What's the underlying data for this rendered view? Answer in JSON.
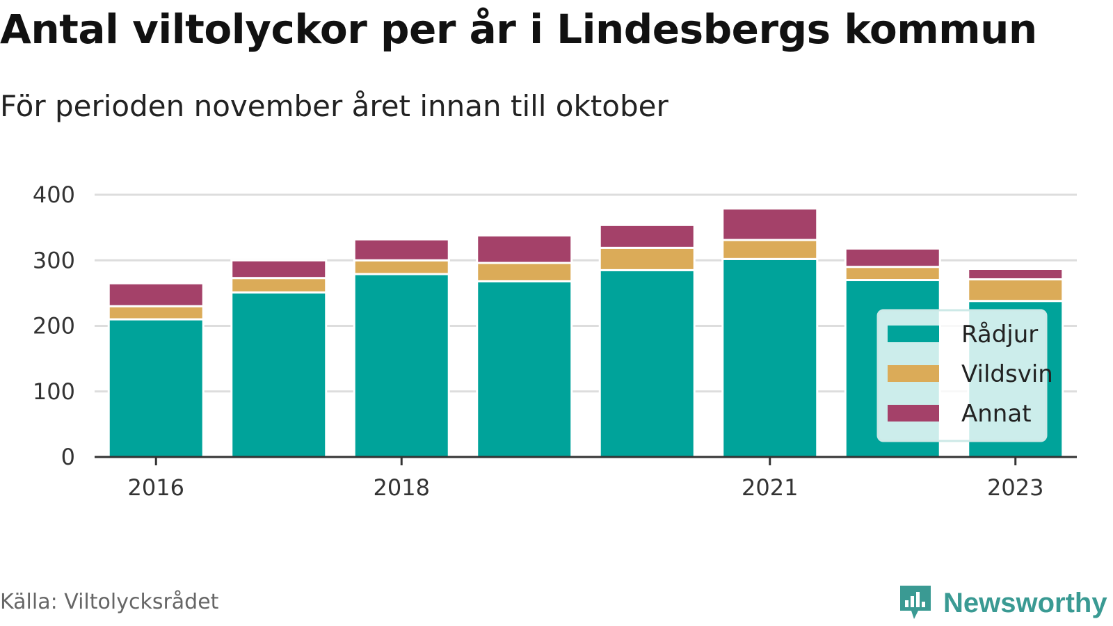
{
  "title": "Antal viltolyckor per år i Lindesbergs kommun",
  "subtitle": "För perioden november året innan till oktober",
  "source": "Källa: Viltolycksrådet",
  "brand": "Newsworthy",
  "chart_data": {
    "type": "bar",
    "stacked": true,
    "categories": [
      "2016",
      "2017",
      "2018",
      "2019",
      "2020",
      "2021",
      "2022",
      "2023"
    ],
    "x_tick_labels": [
      "2016",
      "2018",
      "2021",
      "2023"
    ],
    "ylim": [
      0,
      400
    ],
    "y_ticks": [
      "0",
      "100",
      "200",
      "300",
      "400"
    ],
    "grid": true,
    "legend_position": "bottom-right",
    "series": [
      {
        "name": "Rådjur",
        "color": "#00a39a",
        "values": [
          210,
          251,
          279,
          268,
          285,
          302,
          270,
          238
        ]
      },
      {
        "name": "Vildsvin",
        "color": "#dbab58",
        "values": [
          20,
          22,
          21,
          28,
          34,
          29,
          20,
          33
        ]
      },
      {
        "name": "Annat",
        "color": "#a44169",
        "values": [
          35,
          27,
          32,
          42,
          35,
          48,
          28,
          16
        ]
      }
    ]
  }
}
